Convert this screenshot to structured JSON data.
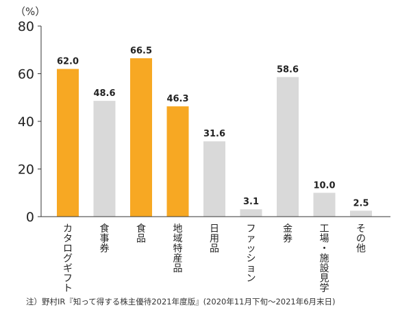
{
  "chart_data": {
    "type": "bar",
    "unit_label": "（%）",
    "categories": [
      "カタログギフト",
      "食事券",
      "食品",
      "地域特産品",
      "日用品",
      "ファッション",
      "金券",
      "工場・施設見学",
      "その他"
    ],
    "values": [
      62.0,
      48.6,
      66.5,
      46.3,
      31.6,
      3.1,
      58.6,
      10.0,
      2.5
    ],
    "value_labels": [
      "62.0",
      "48.6",
      "66.5",
      "46.3",
      "31.6",
      "3.1",
      "58.6",
      "10.0",
      "2.5"
    ],
    "highlighted": [
      true,
      false,
      true,
      true,
      false,
      false,
      false,
      false,
      false
    ],
    "yticks": [
      "0",
      "20",
      "40",
      "60",
      "80"
    ],
    "ylim": [
      0,
      80
    ],
    "grid": false,
    "colors": {
      "highlight": "#f7a823",
      "normal": "#d9d9d9",
      "axis": "#333333"
    }
  },
  "footnote": "注）野村IR『知って得する株主優待2021年度版』(2020年11月下旬〜2021年6月末日)"
}
